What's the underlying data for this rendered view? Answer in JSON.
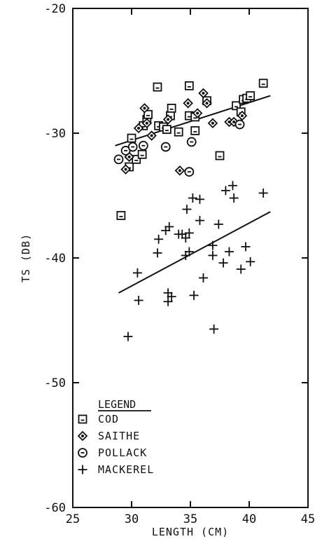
{
  "chart_data": {
    "type": "scatter",
    "title": "",
    "xlabel": "LENGTH (CM)",
    "ylabel": "TS (DB)",
    "xlim": [
      25,
      45
    ],
    "ylim": [
      -60,
      -20
    ],
    "xticks": [
      25,
      30,
      35,
      40,
      45
    ],
    "yticks": [
      -20,
      -30,
      -40,
      -50,
      -60
    ],
    "grid": false,
    "legend": {
      "title": "LEGEND",
      "placement": "bottom-left",
      "entries": [
        "COD",
        "SAITHE",
        "POLLACK",
        "MACKEREL"
      ]
    },
    "series": [
      {
        "name": "COD",
        "marker": "square-dot",
        "points": [
          [
            29.1,
            -36.6
          ],
          [
            29.8,
            -32.7
          ],
          [
            30.0,
            -30.4
          ],
          [
            30.4,
            -32.1
          ],
          [
            30.9,
            -31.7
          ],
          [
            31.0,
            -29.4
          ],
          [
            31.3,
            -28.9
          ],
          [
            31.4,
            -28.5
          ],
          [
            32.2,
            -26.3
          ],
          [
            32.3,
            -29.4
          ],
          [
            32.7,
            -29.5
          ],
          [
            33.0,
            -29.7
          ],
          [
            33.3,
            -28.6
          ],
          [
            33.4,
            -28.0
          ],
          [
            34.0,
            -29.9
          ],
          [
            34.9,
            -26.2
          ],
          [
            34.9,
            -28.6
          ],
          [
            35.4,
            -28.7
          ],
          [
            35.4,
            -29.8
          ],
          [
            36.4,
            -27.4
          ],
          [
            37.5,
            -31.8
          ],
          [
            38.9,
            -27.8
          ],
          [
            39.3,
            -28.3
          ],
          [
            39.5,
            -27.3
          ],
          [
            39.8,
            -27.2
          ],
          [
            40.1,
            -27.0
          ],
          [
            41.2,
            -26.0
          ]
        ]
      },
      {
        "name": "SAITHE",
        "marker": "diamond-dot",
        "points": [
          [
            29.5,
            -32.9
          ],
          [
            29.8,
            -31.9
          ],
          [
            30.6,
            -29.6
          ],
          [
            31.1,
            -28.0
          ],
          [
            31.3,
            -29.2
          ],
          [
            31.7,
            -30.2
          ],
          [
            33.1,
            -28.9
          ],
          [
            34.1,
            -33.0
          ],
          [
            34.8,
            -27.6
          ],
          [
            35.6,
            -28.4
          ],
          [
            36.1,
            -26.8
          ],
          [
            36.4,
            -27.6
          ],
          [
            36.9,
            -29.2
          ],
          [
            38.3,
            -29.1
          ],
          [
            38.7,
            -29.1
          ],
          [
            39.4,
            -28.6
          ]
        ]
      },
      {
        "name": "POLLACK",
        "marker": "circle-dot",
        "points": [
          [
            28.9,
            -32.1
          ],
          [
            29.5,
            -31.4
          ],
          [
            30.1,
            -31.1
          ],
          [
            31.0,
            -31.0
          ],
          [
            32.9,
            -31.1
          ],
          [
            34.9,
            -33.1
          ],
          [
            35.1,
            -30.7
          ],
          [
            39.2,
            -29.3
          ]
        ]
      },
      {
        "name": "MACKEREL",
        "marker": "plus",
        "points": [
          [
            29.7,
            -46.3
          ],
          [
            30.5,
            -41.2
          ],
          [
            30.6,
            -43.4
          ],
          [
            32.2,
            -39.6
          ],
          [
            32.3,
            -38.5
          ],
          [
            32.9,
            -37.8
          ],
          [
            33.1,
            -42.8
          ],
          [
            33.1,
            -43.5
          ],
          [
            33.2,
            -37.5
          ],
          [
            33.4,
            -43.1
          ],
          [
            34.0,
            -38.1
          ],
          [
            34.3,
            -38.1
          ],
          [
            34.6,
            -38.4
          ],
          [
            34.6,
            -39.8
          ],
          [
            34.7,
            -36.1
          ],
          [
            34.9,
            -39.5
          ],
          [
            34.9,
            -38.0
          ],
          [
            35.2,
            -35.2
          ],
          [
            35.3,
            -43.0
          ],
          [
            35.8,
            -35.3
          ],
          [
            35.8,
            -37.0
          ],
          [
            36.1,
            -41.6
          ],
          [
            36.9,
            -39.8
          ],
          [
            36.9,
            -39.0
          ],
          [
            37.0,
            -45.7
          ],
          [
            37.4,
            -37.3
          ],
          [
            37.8,
            -40.4
          ],
          [
            38.0,
            -34.6
          ],
          [
            38.3,
            -39.5
          ],
          [
            38.6,
            -34.2
          ],
          [
            38.7,
            -35.2
          ],
          [
            39.3,
            -40.9
          ],
          [
            39.7,
            -39.1
          ],
          [
            40.1,
            -40.3
          ],
          [
            41.2,
            -34.8
          ]
        ]
      }
    ],
    "fit_lines": [
      {
        "group": "COD, SAITHE, POLLACK",
        "x": [
          28.6,
          41.8
        ],
        "y": [
          -31.0,
          -27.0
        ]
      },
      {
        "group": "MACKEREL",
        "x": [
          28.9,
          41.8
        ],
        "y": [
          -42.8,
          -36.3
        ]
      }
    ]
  }
}
